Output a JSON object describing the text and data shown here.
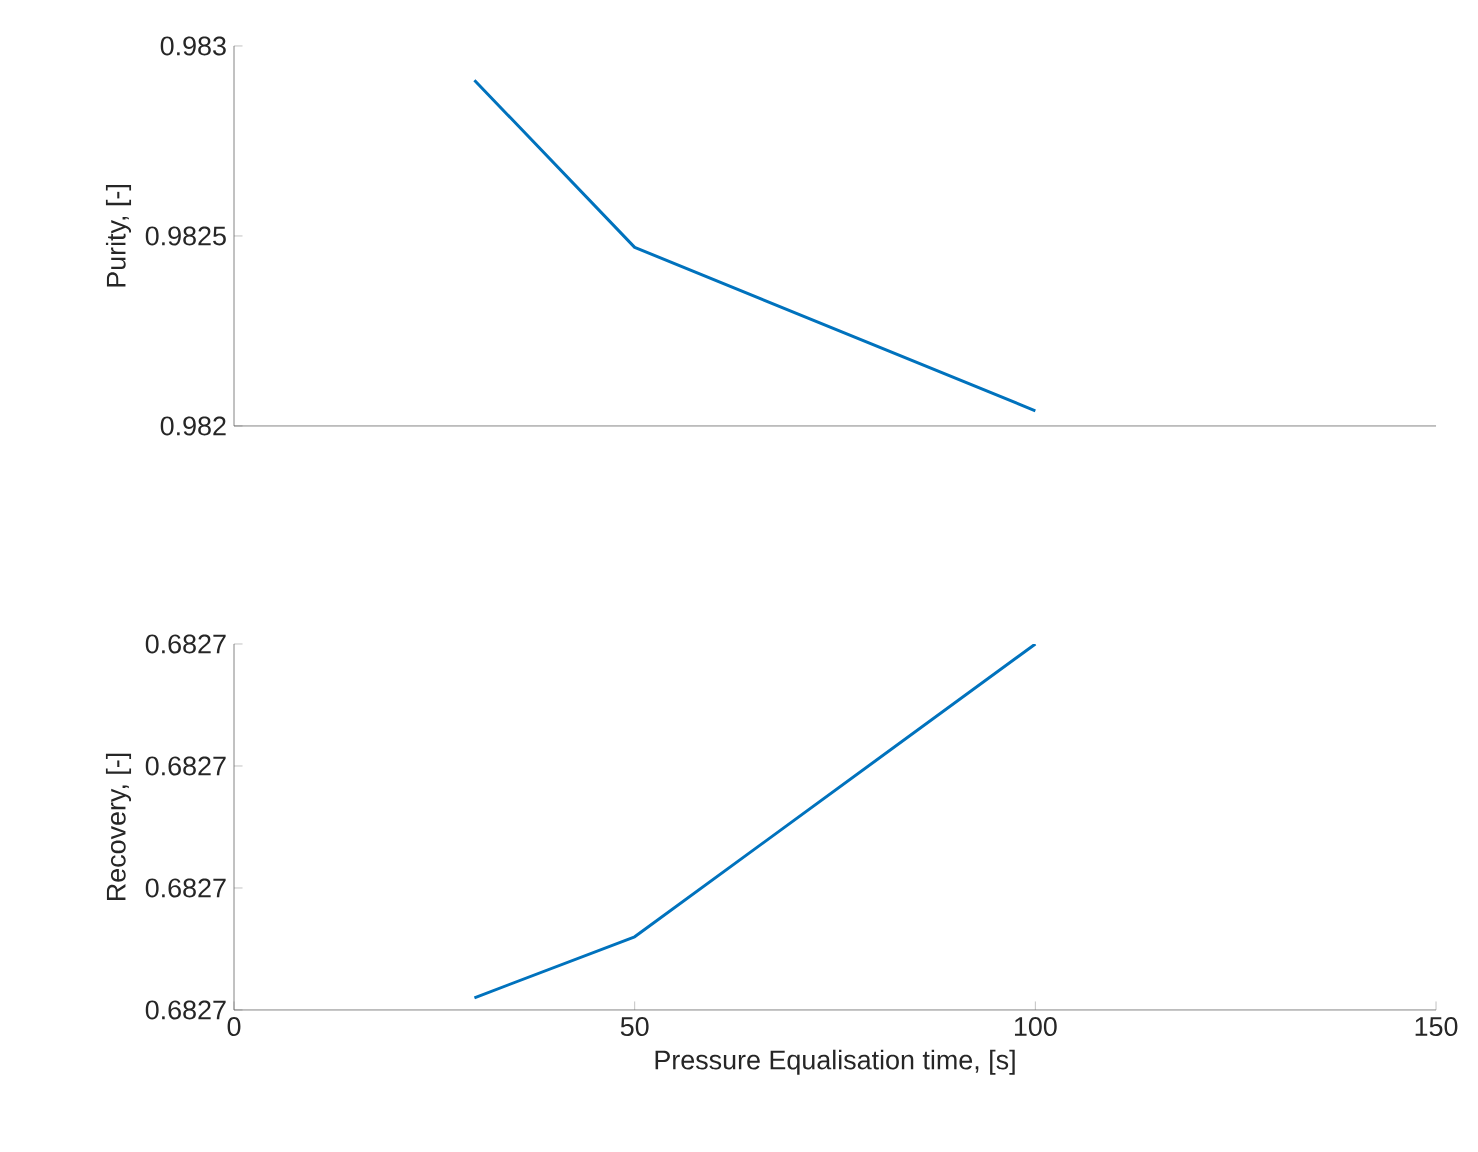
{
  "chart_data": [
    {
      "type": "line",
      "ylabel": "Purity, [-]",
      "x": [
        30,
        50,
        100
      ],
      "series": [
        {
          "color": "#0072bd",
          "values": [
            0.98291,
            0.98247,
            0.98204
          ]
        }
      ],
      "xlim": [
        0,
        150
      ],
      "ylim": [
        0.982,
        0.983
      ],
      "yticks": [
        0.982,
        0.9825,
        0.983
      ],
      "tick_labels": "y"
    },
    {
      "type": "line",
      "ylabel": "Recovery, [-]",
      "xlabel": "Pressure Equalisation time, [s]",
      "x": [
        30,
        50,
        100
      ],
      "series": [
        {
          "color": "#0072bd",
          "values": [
            0.682681,
            0.682686,
            0.68271
          ]
        }
      ],
      "xlim": [
        0,
        150
      ],
      "xticks": [
        0,
        50,
        100,
        150
      ],
      "ylim": [
        0.68268,
        0.68271
      ],
      "yticks": [
        {
          "value": 0.68268,
          "label": "0.6827"
        },
        {
          "value": 0.68269,
          "label": "0.6827"
        },
        {
          "value": 0.6827,
          "label": "0.6827"
        },
        {
          "value": 0.68271,
          "label": "0.6827"
        }
      ]
    }
  ]
}
